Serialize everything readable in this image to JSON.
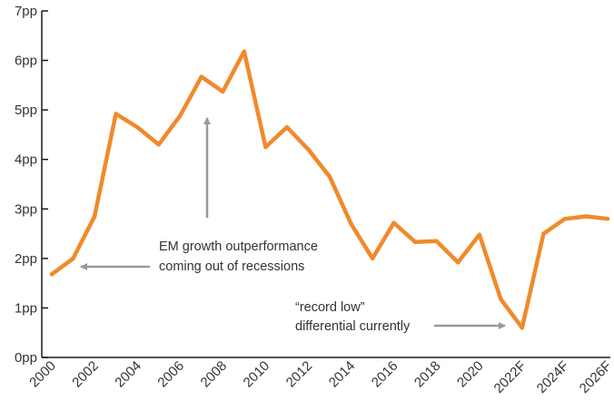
{
  "chart_data": {
    "type": "line",
    "title": "",
    "xlabel": "",
    "ylabel": "",
    "ylim": [
      0,
      7
    ],
    "y_ticks": [
      "0pp",
      "1pp",
      "2pp",
      "3pp",
      "4pp",
      "5pp",
      "6pp",
      "7pp"
    ],
    "x_tick_labels": [
      "2000",
      "2002",
      "2004",
      "2006",
      "2008",
      "2010",
      "2012",
      "2014",
      "2016",
      "2018",
      "2020",
      "2022F",
      "2024F",
      "2026F"
    ],
    "grid": false,
    "series": [
      {
        "x": [
          "2000",
          "2001",
          "2002",
          "2003",
          "2004",
          "2005",
          "2006",
          "2007",
          "2008",
          "2009",
          "2010",
          "2011",
          "2012",
          "2013",
          "2014",
          "2015",
          "2016",
          "2017",
          "2018",
          "2019",
          "2020",
          "2021",
          "2022F",
          "2023F",
          "2024F",
          "2025F",
          "2026F"
        ],
        "values": [
          1.68,
          2.0,
          2.85,
          4.92,
          4.65,
          4.3,
          4.88,
          5.67,
          5.37,
          6.18,
          4.25,
          4.65,
          4.2,
          3.65,
          2.7,
          2.0,
          2.72,
          2.33,
          2.35,
          1.92,
          2.48,
          1.18,
          0.6,
          2.5,
          2.8,
          2.85,
          2.8
        ]
      }
    ],
    "annotations": [
      {
        "lines": [
          "EM growth outperformance",
          "coming out of recessions"
        ]
      },
      {
        "lines": [
          "“record low”",
          "differential currently"
        ]
      }
    ],
    "colors": {
      "line": "#f08a2c",
      "axis": "#1a1a1a",
      "arrow": "#999999",
      "text": "#333333"
    }
  }
}
